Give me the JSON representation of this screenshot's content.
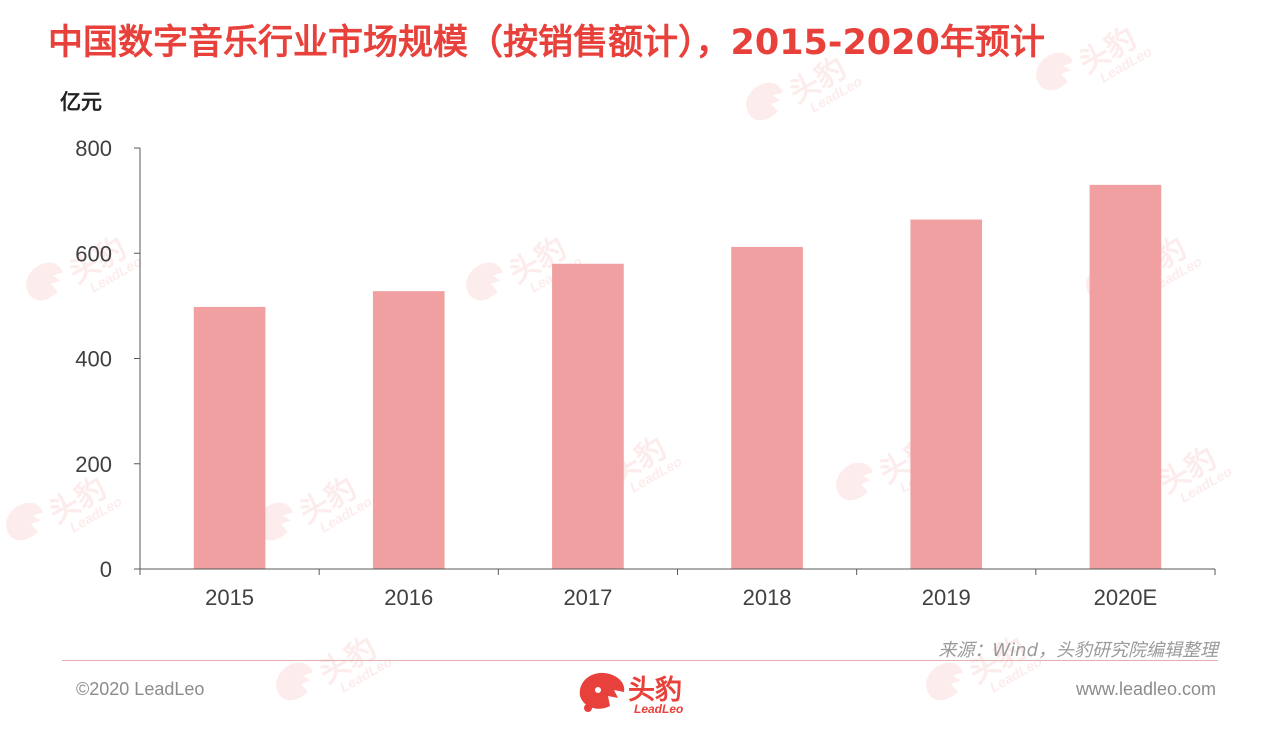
{
  "header": {
    "title": "中国数字音乐行业市场规模（按销售额计），2015-2020年预计",
    "unit_label": "亿元"
  },
  "chart_data": {
    "type": "bar",
    "categories": [
      "2015",
      "2016",
      "2017",
      "2018",
      "2019",
      "2020E"
    ],
    "values": [
      498,
      528,
      580,
      612,
      664,
      730
    ],
    "ylabel": "亿元",
    "ylim": [
      0,
      800
    ],
    "yticks": [
      "0",
      "200",
      "400",
      "600",
      "800"
    ],
    "grid": false,
    "legend": "none",
    "bar_color": "#f0a0a0"
  },
  "footer": {
    "source": "来源：Wind，头豹研究院编辑整理",
    "copyright": "©2020 LeadLeo",
    "website": "www.leadleo.com",
    "logo_cn": "头豹",
    "logo_en": "LeadLeo"
  },
  "colors": {
    "title": "#e8403a",
    "bar": "#f0a0a0",
    "axis": "#595959"
  }
}
